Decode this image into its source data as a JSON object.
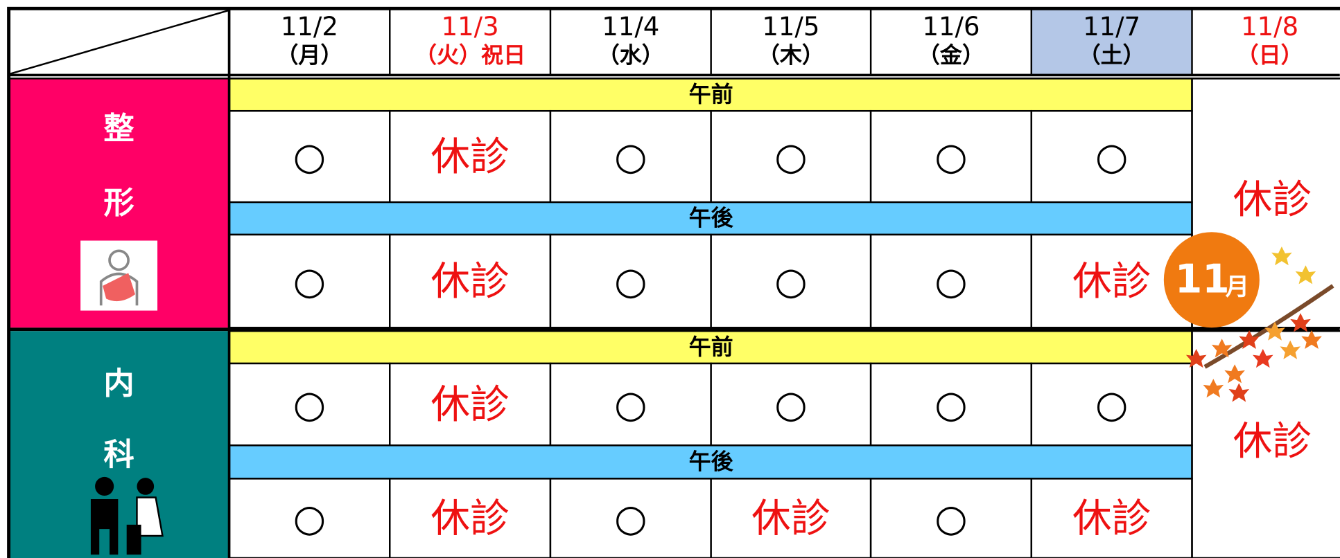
{
  "header": {
    "days": [
      {
        "date": "11/2",
        "weekday": "（月）"
      },
      {
        "date": "11/3",
        "weekday": "（火）祝日"
      },
      {
        "date": "11/4",
        "weekday": "（水）"
      },
      {
        "date": "11/5",
        "weekday": "（木）"
      },
      {
        "date": "11/6",
        "weekday": "（金）"
      },
      {
        "date": "11/7",
        "weekday": "（土）"
      },
      {
        "date": "11/8",
        "weekday": "（日）"
      }
    ]
  },
  "departments": [
    {
      "name": [
        "整",
        "形"
      ],
      "sunday": "休診",
      "sessions": [
        {
          "label": "午前",
          "cells": [
            "○",
            "休診",
            "○",
            "○",
            "○",
            "○"
          ]
        },
        {
          "label": "午後",
          "cells": [
            "○",
            "休診",
            "○",
            "○",
            "○",
            "休診"
          ]
        }
      ]
    },
    {
      "name": [
        "内",
        "科"
      ],
      "sunday": "休診",
      "sessions": [
        {
          "label": "午前",
          "cells": [
            "○",
            "休診",
            "○",
            "○",
            "○",
            "○"
          ]
        },
        {
          "label": "午後",
          "cells": [
            "○",
            "休診",
            "○",
            "休診",
            "○",
            "休診"
          ]
        }
      ]
    }
  ],
  "badge": {
    "number": "11",
    "unit": "月"
  }
}
